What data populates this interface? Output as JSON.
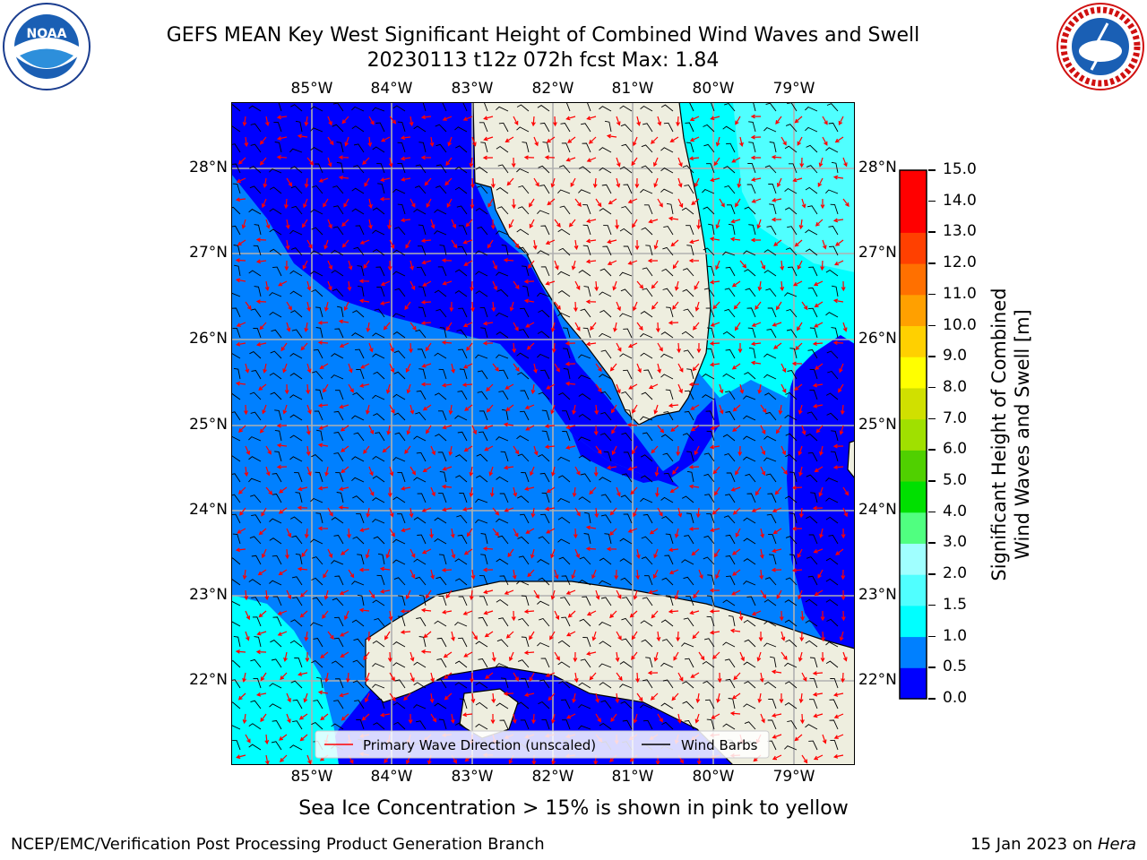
{
  "header": {
    "title_line1": "GEFS MEAN Key West Significant Height of Combined Wind Waves and Swell",
    "title_line2": "20230113 t12z 072h fcst   Max: 1.84"
  },
  "map": {
    "lon_labels": [
      "85°W",
      "84°W",
      "83°W",
      "82°W",
      "81°W",
      "80°W",
      "79°W"
    ],
    "lat_labels": [
      "28°N",
      "27°N",
      "26°N",
      "25°N",
      "24°N",
      "23°N",
      "22°N"
    ],
    "legend": {
      "wave_label": "Primary Wave Direction (unscaled)",
      "barb_label": "Wind Barbs",
      "wave_color": "#ff0000",
      "barb_color": "#000000"
    },
    "land_color": "#eeeedf",
    "grid_color": "#b0b0b0"
  },
  "colorbar": {
    "label_line1": "Significant Height of Combined",
    "label_line2": "Wind Waves and Swell [m]",
    "ticks": [
      "0.0",
      "0.5",
      "1.0",
      "1.5",
      "2.0",
      "3.0",
      "4.0",
      "5.0",
      "6.0",
      "7.0",
      "8.0",
      "9.0",
      "10.0",
      "11.0",
      "12.0",
      "13.0",
      "14.0",
      "15.0"
    ],
    "colors": [
      "#0000ff",
      "#0080ff",
      "#00ffff",
      "#50ffff",
      "#a0ffff",
      "#50ff80",
      "#00e000",
      "#50d000",
      "#a0e000",
      "#d0e000",
      "#ffff00",
      "#ffd000",
      "#ffa000",
      "#ff7000",
      "#ff4000",
      "#ff0000",
      "#ff0000"
    ]
  },
  "logos": {
    "noaa_text": "NOAA",
    "nws_text": "NATIONAL WEATHER SERVICE"
  },
  "footer": {
    "note": "Sea Ice Concentration > 15% is shown in pink to yellow",
    "left": "NCEP/EMC/Verification Post Processing Product Generation Branch",
    "right_prefix": "15 Jan 2023 on ",
    "right_host": "Hera"
  }
}
